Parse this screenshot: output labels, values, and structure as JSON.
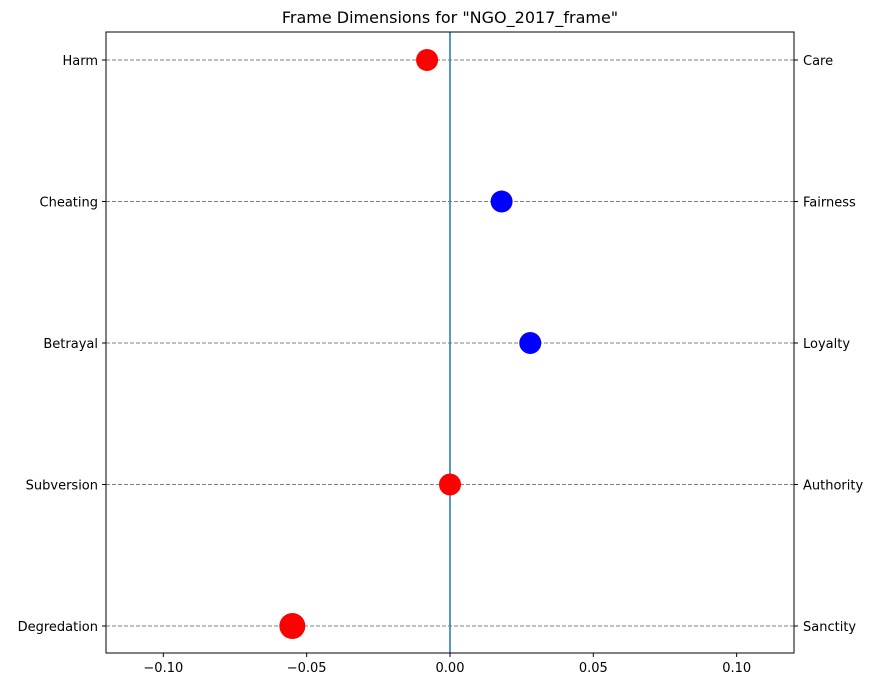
{
  "chart_data": {
    "type": "scatter",
    "title": "Frame Dimensions for \"NGO_2017_frame\"",
    "xlabel": "",
    "ylabel": "",
    "xlim": [
      -0.12,
      0.12
    ],
    "x_ticks": [
      -0.1,
      -0.05,
      0.0,
      0.05,
      0.1
    ],
    "x_tick_labels": [
      "−0.10",
      "−0.05",
      "0.00",
      "0.05",
      "0.10"
    ],
    "grid": "horizontal dashed lines at each category",
    "reference_line": {
      "x": 0.0,
      "color": "#1f77b4"
    },
    "categories": [
      {
        "left_label": "Harm",
        "right_label": "Care",
        "value": -0.008,
        "color": "#ff0000",
        "size": "medium"
      },
      {
        "left_label": "Cheating",
        "right_label": "Fairness",
        "value": 0.018,
        "color": "#0000ff",
        "size": "medium"
      },
      {
        "left_label": "Betrayal",
        "right_label": "Loyalty",
        "value": 0.028,
        "color": "#0000ff",
        "size": "medium"
      },
      {
        "left_label": "Subversion",
        "right_label": "Authority",
        "value": 0.0,
        "color": "#ff0000",
        "size": "medium"
      },
      {
        "left_label": "Degredation",
        "right_label": "Sanctity",
        "value": -0.055,
        "color": "#ff0000",
        "size": "large"
      }
    ]
  }
}
